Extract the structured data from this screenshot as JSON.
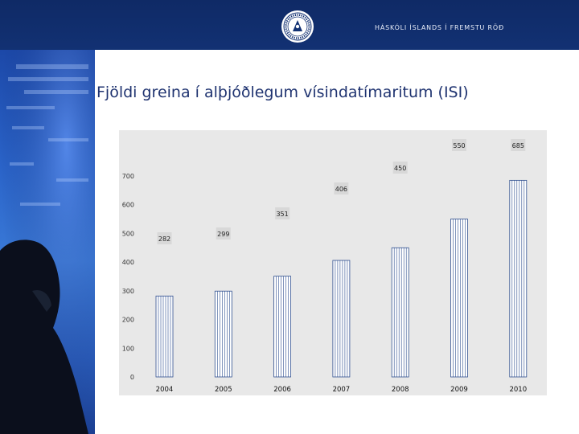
{
  "header": {
    "org_text": "HÁSKÓLI ÍSLANDS Í FREMSTU RÖÐ"
  },
  "slide": {
    "title": "Fjöldi greina í alþjóðlegum vísindatímaritum (ISI)"
  },
  "colors": {
    "header_bg": "#123173",
    "title": "#1f3370",
    "bar_fill": "#ffffff",
    "bar_stroke": "#2f4f8f",
    "label_bg": "#d8d8d8"
  },
  "chart_data": {
    "type": "bar",
    "categories": [
      "2004",
      "2005",
      "2006",
      "2007",
      "2008",
      "2009",
      "2010"
    ],
    "values": [
      282,
      299,
      351,
      406,
      450,
      550,
      685
    ],
    "y_ticks": [
      0,
      100,
      200,
      300,
      400,
      500,
      600,
      700
    ],
    "ylim": [
      0,
      700
    ],
    "title": "",
    "xlabel": "",
    "ylabel": "",
    "grid": false,
    "legend": "none"
  }
}
